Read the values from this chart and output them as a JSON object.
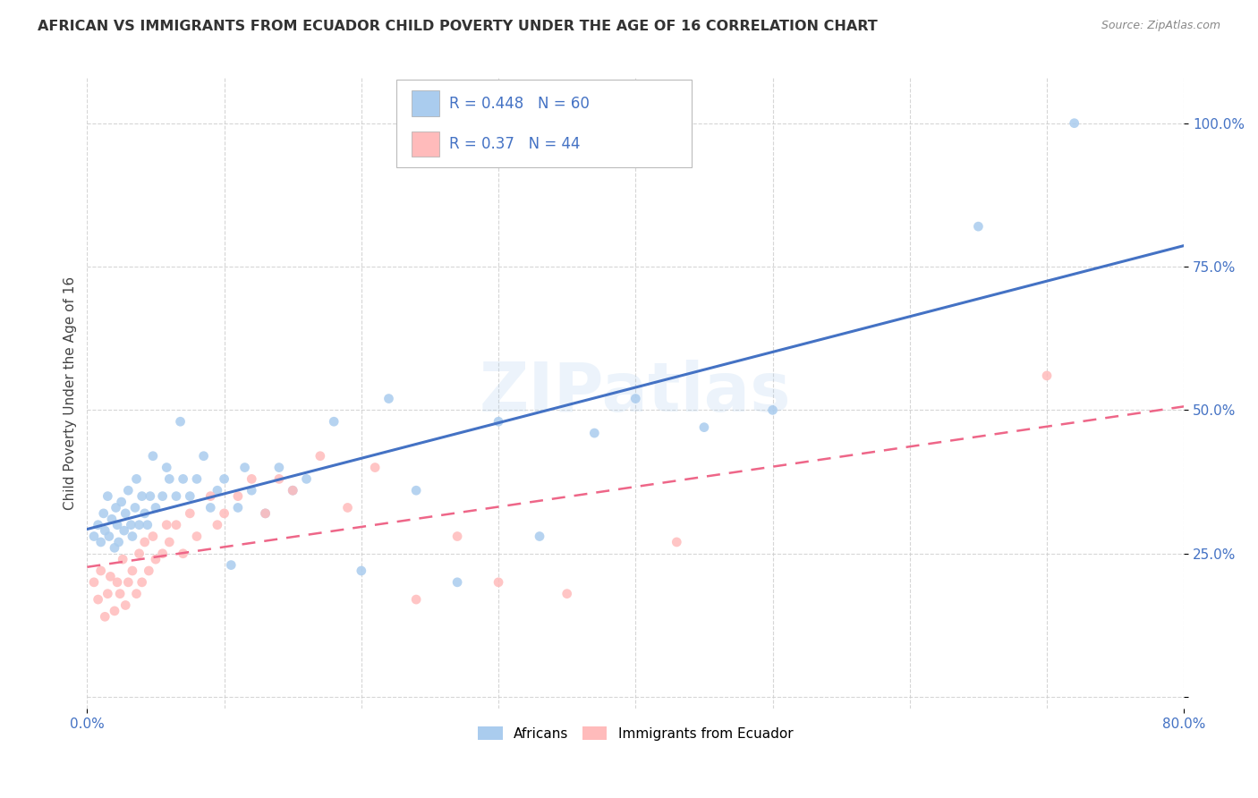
{
  "title": "AFRICAN VS IMMIGRANTS FROM ECUADOR CHILD POVERTY UNDER THE AGE OF 16 CORRELATION CHART",
  "source": "Source: ZipAtlas.com",
  "ylabel": "Child Poverty Under the Age of 16",
  "xlim": [
    0.0,
    0.8
  ],
  "ylim": [
    -0.02,
    1.08
  ],
  "ytick_positions": [
    0.0,
    0.25,
    0.5,
    0.75,
    1.0
  ],
  "yticklabels": [
    "",
    "25.0%",
    "50.0%",
    "75.0%",
    "100.0%"
  ],
  "africans_R": 0.448,
  "africans_N": 60,
  "ecuador_R": 0.37,
  "ecuador_N": 44,
  "africans_color": "#AACCEE",
  "ecuador_color": "#FFBBBB",
  "regression_blue": "#4472C4",
  "regression_pink": "#EE6688",
  "label_color": "#4472C4",
  "title_color": "#333333",
  "source_color": "#888888",
  "grid_color": "#CCCCCC",
  "watermark": "ZIPatlas",
  "africans_x": [
    0.005,
    0.008,
    0.01,
    0.012,
    0.013,
    0.015,
    0.016,
    0.018,
    0.02,
    0.021,
    0.022,
    0.023,
    0.025,
    0.027,
    0.028,
    0.03,
    0.032,
    0.033,
    0.035,
    0.036,
    0.038,
    0.04,
    0.042,
    0.044,
    0.046,
    0.048,
    0.05,
    0.055,
    0.058,
    0.06,
    0.065,
    0.068,
    0.07,
    0.075,
    0.08,
    0.085,
    0.09,
    0.095,
    0.1,
    0.105,
    0.11,
    0.115,
    0.12,
    0.13,
    0.14,
    0.15,
    0.16,
    0.18,
    0.2,
    0.22,
    0.24,
    0.27,
    0.3,
    0.33,
    0.37,
    0.4,
    0.45,
    0.5,
    0.65,
    0.72
  ],
  "africans_y": [
    0.28,
    0.3,
    0.27,
    0.32,
    0.29,
    0.35,
    0.28,
    0.31,
    0.26,
    0.33,
    0.3,
    0.27,
    0.34,
    0.29,
    0.32,
    0.36,
    0.3,
    0.28,
    0.33,
    0.38,
    0.3,
    0.35,
    0.32,
    0.3,
    0.35,
    0.42,
    0.33,
    0.35,
    0.4,
    0.38,
    0.35,
    0.48,
    0.38,
    0.35,
    0.38,
    0.42,
    0.33,
    0.36,
    0.38,
    0.23,
    0.33,
    0.4,
    0.36,
    0.32,
    0.4,
    0.36,
    0.38,
    0.48,
    0.22,
    0.52,
    0.36,
    0.2,
    0.48,
    0.28,
    0.46,
    0.52,
    0.47,
    0.5,
    0.82,
    1.0
  ],
  "ecuador_x": [
    0.005,
    0.008,
    0.01,
    0.013,
    0.015,
    0.017,
    0.02,
    0.022,
    0.024,
    0.026,
    0.028,
    0.03,
    0.033,
    0.036,
    0.038,
    0.04,
    0.042,
    0.045,
    0.048,
    0.05,
    0.055,
    0.058,
    0.06,
    0.065,
    0.07,
    0.075,
    0.08,
    0.09,
    0.095,
    0.1,
    0.11,
    0.12,
    0.13,
    0.14,
    0.15,
    0.17,
    0.19,
    0.21,
    0.24,
    0.27,
    0.3,
    0.35,
    0.43,
    0.7
  ],
  "ecuador_y": [
    0.2,
    0.17,
    0.22,
    0.14,
    0.18,
    0.21,
    0.15,
    0.2,
    0.18,
    0.24,
    0.16,
    0.2,
    0.22,
    0.18,
    0.25,
    0.2,
    0.27,
    0.22,
    0.28,
    0.24,
    0.25,
    0.3,
    0.27,
    0.3,
    0.25,
    0.32,
    0.28,
    0.35,
    0.3,
    0.32,
    0.35,
    0.38,
    0.32,
    0.38,
    0.36,
    0.42,
    0.33,
    0.4,
    0.17,
    0.28,
    0.2,
    0.18,
    0.27,
    0.56
  ]
}
